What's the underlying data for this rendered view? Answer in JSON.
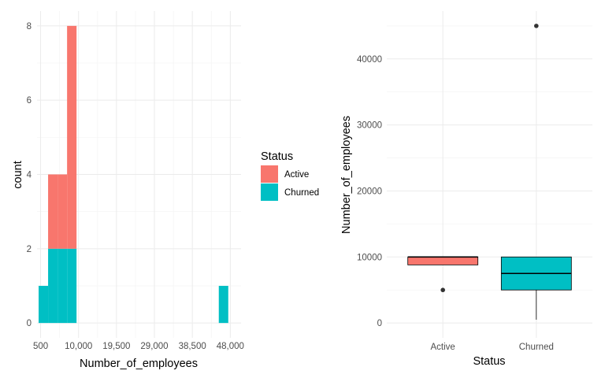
{
  "chart_data": [
    {
      "type": "bar",
      "subtype": "stacked-histogram",
      "xlabel": "Number_of_employees",
      "ylabel": "count",
      "xticks": [
        {
          "value": 500,
          "label": "500"
        },
        {
          "value": 10000,
          "label": "10,000"
        },
        {
          "value": 19500,
          "label": "19,500"
        },
        {
          "value": 29000,
          "label": "29,000"
        },
        {
          "value": 38500,
          "label": "38,500"
        },
        {
          "value": 48000,
          "label": "48,000"
        }
      ],
      "yticks": [
        0,
        2,
        4,
        6,
        8
      ],
      "xlim": [
        -400,
        50700
      ],
      "ylim": [
        -0.4,
        8.4
      ],
      "bins": [
        {
          "x0": 0,
          "x1": 2375,
          "Active": 0,
          "Churned": 1
        },
        {
          "x0": 2375,
          "x1": 4750,
          "Active": 2,
          "Churned": 2
        },
        {
          "x0": 4750,
          "x1": 7125,
          "Active": 2,
          "Churned": 2
        },
        {
          "x0": 7125,
          "x1": 9500,
          "Active": 6,
          "Churned": 2
        },
        {
          "x0": 45125,
          "x1": 47500,
          "Active": 0,
          "Churned": 1
        }
      ],
      "grid": true
    },
    {
      "type": "boxplot",
      "xlabel": "Status",
      "ylabel": "Number_of_employees",
      "categories": [
        "Active",
        "Churned"
      ],
      "yticks": [
        0,
        10000,
        20000,
        30000,
        40000
      ],
      "ylim": [
        -2250,
        47250
      ],
      "boxes": [
        {
          "category": "Active",
          "whisker_low": 8800,
          "q1": 8800,
          "median": 10000,
          "q3": 10000,
          "whisker_high": 10000,
          "outliers": [
            5000
          ],
          "color": "#F8766D"
        },
        {
          "category": "Churned",
          "whisker_low": 500,
          "q1": 5000,
          "median": 7500,
          "q3": 10000,
          "whisker_high": 10000,
          "outliers": [
            45000
          ],
          "color": "#00BFC4"
        }
      ],
      "grid": true
    }
  ],
  "legend": {
    "title": "Status",
    "placement": "center-right of histogram",
    "items": [
      {
        "label": "Active",
        "color": "#F8766D"
      },
      {
        "label": "Churned",
        "color": "#00BFC4"
      }
    ]
  },
  "colors": {
    "grid_major": "#ebebeb",
    "grid_minor": "#f5f5f5",
    "outline": "#000000"
  }
}
